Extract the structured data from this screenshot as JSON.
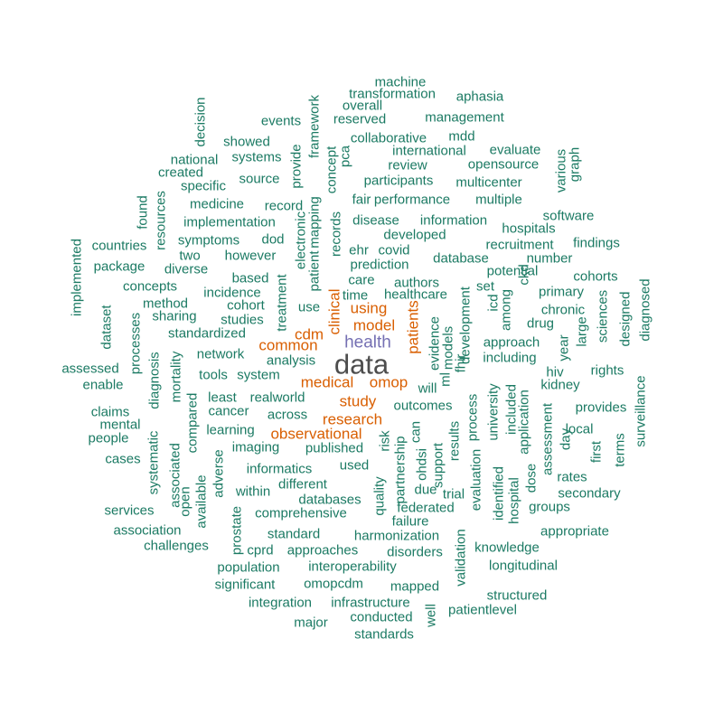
{
  "words": [
    {
      "t": "data",
      "c": "#4d4d4d"
    },
    {
      "t": "health",
      "c": "#7570b3"
    },
    {
      "t": "omop",
      "c": "#d95f02"
    },
    {
      "t": "medical",
      "c": "#d95f02"
    },
    {
      "t": "patients",
      "c": "#d95f02"
    },
    {
      "t": "clinical",
      "c": "#d95f02"
    },
    {
      "t": "model",
      "c": "#d95f02"
    },
    {
      "t": "using",
      "c": "#d95f02"
    },
    {
      "t": "cdm",
      "c": "#d95f02"
    },
    {
      "t": "common",
      "c": "#d95f02"
    },
    {
      "t": "study",
      "c": "#d95f02"
    },
    {
      "t": "research",
      "c": "#d95f02"
    },
    {
      "t": "observational",
      "c": "#d95f02"
    },
    {
      "t": "machine",
      "c": "#1b7a63"
    },
    {
      "t": "transformation",
      "c": "#1b7a63"
    },
    {
      "t": "aphasia",
      "c": "#1b7a63"
    },
    {
      "t": "overall",
      "c": "#1b7a63"
    },
    {
      "t": "events",
      "c": "#1b7a63"
    },
    {
      "t": "reserved",
      "c": "#1b7a63"
    },
    {
      "t": "management",
      "c": "#1b7a63"
    },
    {
      "t": "collaborative",
      "c": "#1b7a63"
    },
    {
      "t": "mdd",
      "c": "#1b7a63"
    },
    {
      "t": "showed",
      "c": "#1b7a63"
    },
    {
      "t": "international",
      "c": "#1b7a63"
    },
    {
      "t": "evaluate",
      "c": "#1b7a63"
    },
    {
      "t": "national",
      "c": "#1b7a63"
    },
    {
      "t": "systems",
      "c": "#1b7a63"
    },
    {
      "t": "review",
      "c": "#1b7a63"
    },
    {
      "t": "opensource",
      "c": "#1b7a63"
    },
    {
      "t": "created",
      "c": "#1b7a63"
    },
    {
      "t": "source",
      "c": "#1b7a63"
    },
    {
      "t": "participants",
      "c": "#1b7a63"
    },
    {
      "t": "multicenter",
      "c": "#1b7a63"
    },
    {
      "t": "specific",
      "c": "#1b7a63"
    },
    {
      "t": "fair",
      "c": "#1b7a63"
    },
    {
      "t": "performance",
      "c": "#1b7a63"
    },
    {
      "t": "multiple",
      "c": "#1b7a63"
    },
    {
      "t": "medicine",
      "c": "#1b7a63"
    },
    {
      "t": "record",
      "c": "#1b7a63"
    },
    {
      "t": "software",
      "c": "#1b7a63"
    },
    {
      "t": "implementation",
      "c": "#1b7a63"
    },
    {
      "t": "disease",
      "c": "#1b7a63"
    },
    {
      "t": "information",
      "c": "#1b7a63"
    },
    {
      "t": "hospitals",
      "c": "#1b7a63"
    },
    {
      "t": "symptoms",
      "c": "#1b7a63"
    },
    {
      "t": "dod",
      "c": "#1b7a63"
    },
    {
      "t": "developed",
      "c": "#1b7a63"
    },
    {
      "t": "findings",
      "c": "#1b7a63"
    },
    {
      "t": "countries",
      "c": "#1b7a63"
    },
    {
      "t": "two",
      "c": "#1b7a63"
    },
    {
      "t": "ehr",
      "c": "#1b7a63"
    },
    {
      "t": "covid",
      "c": "#1b7a63"
    },
    {
      "t": "recruitment",
      "c": "#1b7a63"
    },
    {
      "t": "package",
      "c": "#1b7a63"
    },
    {
      "t": "however",
      "c": "#1b7a63"
    },
    {
      "t": "database",
      "c": "#1b7a63"
    },
    {
      "t": "number",
      "c": "#1b7a63"
    },
    {
      "t": "diverse",
      "c": "#1b7a63"
    },
    {
      "t": "prediction",
      "c": "#1b7a63"
    },
    {
      "t": "potential",
      "c": "#1b7a63"
    },
    {
      "t": "cohorts",
      "c": "#1b7a63"
    },
    {
      "t": "based",
      "c": "#1b7a63"
    },
    {
      "t": "authors",
      "c": "#1b7a63"
    },
    {
      "t": "concepts",
      "c": "#1b7a63"
    },
    {
      "t": "incidence",
      "c": "#1b7a63"
    },
    {
      "t": "care",
      "c": "#1b7a63"
    },
    {
      "t": "set",
      "c": "#1b7a63"
    },
    {
      "t": "primary",
      "c": "#1b7a63"
    },
    {
      "t": "method",
      "c": "#1b7a63"
    },
    {
      "t": "cohort",
      "c": "#1b7a63"
    },
    {
      "t": "time",
      "c": "#1b7a63"
    },
    {
      "t": "healthcare",
      "c": "#1b7a63"
    },
    {
      "t": "chronic",
      "c": "#1b7a63"
    },
    {
      "t": "sharing",
      "c": "#1b7a63"
    },
    {
      "t": "studies",
      "c": "#1b7a63"
    },
    {
      "t": "use",
      "c": "#1b7a63"
    },
    {
      "t": "drug",
      "c": "#1b7a63"
    },
    {
      "t": "standardized",
      "c": "#1b7a63"
    },
    {
      "t": "approach",
      "c": "#1b7a63"
    },
    {
      "t": "network",
      "c": "#1b7a63"
    },
    {
      "t": "analysis",
      "c": "#1b7a63"
    },
    {
      "t": "including",
      "c": "#1b7a63"
    },
    {
      "t": "assessed",
      "c": "#1b7a63"
    },
    {
      "t": "rights",
      "c": "#1b7a63"
    },
    {
      "t": "enable",
      "c": "#1b7a63"
    },
    {
      "t": "tools",
      "c": "#1b7a63"
    },
    {
      "t": "system",
      "c": "#1b7a63"
    },
    {
      "t": "will",
      "c": "#1b7a63"
    },
    {
      "t": "hiv",
      "c": "#1b7a63"
    },
    {
      "t": "kidney",
      "c": "#1b7a63"
    },
    {
      "t": "least",
      "c": "#1b7a63"
    },
    {
      "t": "realworld",
      "c": "#1b7a63"
    },
    {
      "t": "outcomes",
      "c": "#1b7a63"
    },
    {
      "t": "provides",
      "c": "#1b7a63"
    },
    {
      "t": "claims",
      "c": "#1b7a63"
    },
    {
      "t": "cancer",
      "c": "#1b7a63"
    },
    {
      "t": "across",
      "c": "#1b7a63"
    },
    {
      "t": "mental",
      "c": "#1b7a63"
    },
    {
      "t": "learning",
      "c": "#1b7a63"
    },
    {
      "t": "local",
      "c": "#1b7a63"
    },
    {
      "t": "people",
      "c": "#1b7a63"
    },
    {
      "t": "imaging",
      "c": "#1b7a63"
    },
    {
      "t": "published",
      "c": "#1b7a63"
    },
    {
      "t": "cases",
      "c": "#1b7a63"
    },
    {
      "t": "used",
      "c": "#1b7a63"
    },
    {
      "t": "informatics",
      "c": "#1b7a63"
    },
    {
      "t": "rates",
      "c": "#1b7a63"
    },
    {
      "t": "different",
      "c": "#1b7a63"
    },
    {
      "t": "due",
      "c": "#1b7a63"
    },
    {
      "t": "within",
      "c": "#1b7a63"
    },
    {
      "t": "trial",
      "c": "#1b7a63"
    },
    {
      "t": "secondary",
      "c": "#1b7a63"
    },
    {
      "t": "databases",
      "c": "#1b7a63"
    },
    {
      "t": "federated",
      "c": "#1b7a63"
    },
    {
      "t": "groups",
      "c": "#1b7a63"
    },
    {
      "t": "services",
      "c": "#1b7a63"
    },
    {
      "t": "comprehensive",
      "c": "#1b7a63"
    },
    {
      "t": "failure",
      "c": "#1b7a63"
    },
    {
      "t": "association",
      "c": "#1b7a63"
    },
    {
      "t": "standard",
      "c": "#1b7a63"
    },
    {
      "t": "harmonization",
      "c": "#1b7a63"
    },
    {
      "t": "appropriate",
      "c": "#1b7a63"
    },
    {
      "t": "challenges",
      "c": "#1b7a63"
    },
    {
      "t": "cprd",
      "c": "#1b7a63"
    },
    {
      "t": "approaches",
      "c": "#1b7a63"
    },
    {
      "t": "disorders",
      "c": "#1b7a63"
    },
    {
      "t": "knowledge",
      "c": "#1b7a63"
    },
    {
      "t": "population",
      "c": "#1b7a63"
    },
    {
      "t": "interoperability",
      "c": "#1b7a63"
    },
    {
      "t": "longitudinal",
      "c": "#1b7a63"
    },
    {
      "t": "significant",
      "c": "#1b7a63"
    },
    {
      "t": "omopcdm",
      "c": "#1b7a63"
    },
    {
      "t": "mapped",
      "c": "#1b7a63"
    },
    {
      "t": "structured",
      "c": "#1b7a63"
    },
    {
      "t": "integration",
      "c": "#1b7a63"
    },
    {
      "t": "infrastructure",
      "c": "#1b7a63"
    },
    {
      "t": "patientlevel",
      "c": "#1b7a63"
    },
    {
      "t": "conducted",
      "c": "#1b7a63"
    },
    {
      "t": "major",
      "c": "#1b7a63"
    },
    {
      "t": "standards",
      "c": "#1b7a63"
    },
    {
      "t": "decision",
      "c": "#1b7a63"
    },
    {
      "t": "framework",
      "c": "#1b7a63"
    },
    {
      "t": "provide",
      "c": "#1b7a63"
    },
    {
      "t": "concept",
      "c": "#1b7a63"
    },
    {
      "t": "pca",
      "c": "#1b7a63"
    },
    {
      "t": "various",
      "c": "#1b7a63"
    },
    {
      "t": "graph",
      "c": "#1b7a63"
    },
    {
      "t": "found",
      "c": "#1b7a63"
    },
    {
      "t": "resources",
      "c": "#1b7a63"
    },
    {
      "t": "mapping",
      "c": "#1b7a63"
    },
    {
      "t": "records",
      "c": "#1b7a63"
    },
    {
      "t": "electronic",
      "c": "#1b7a63"
    },
    {
      "t": "patient",
      "c": "#1b7a63"
    },
    {
      "t": "implemented",
      "c": "#1b7a63"
    },
    {
      "t": "ckd",
      "c": "#1b7a63"
    },
    {
      "t": "icd",
      "c": "#1b7a63"
    },
    {
      "t": "among",
      "c": "#1b7a63"
    },
    {
      "t": "dataset",
      "c": "#1b7a63"
    },
    {
      "t": "processes",
      "c": "#1b7a63"
    },
    {
      "t": "treatment",
      "c": "#1b7a63"
    },
    {
      "t": "sciences",
      "c": "#1b7a63"
    },
    {
      "t": "designed",
      "c": "#1b7a63"
    },
    {
      "t": "diagnosed",
      "c": "#1b7a63"
    },
    {
      "t": "large",
      "c": "#1b7a63"
    },
    {
      "t": "year",
      "c": "#1b7a63"
    },
    {
      "t": "development",
      "c": "#1b7a63"
    },
    {
      "t": "evidence",
      "c": "#1b7a63"
    },
    {
      "t": "models",
      "c": "#1b7a63"
    },
    {
      "t": "fhir",
      "c": "#1b7a63"
    },
    {
      "t": "ml",
      "c": "#1b7a63"
    },
    {
      "t": "diagnosis",
      "c": "#1b7a63"
    },
    {
      "t": "mortality",
      "c": "#1b7a63"
    },
    {
      "t": "compared",
      "c": "#1b7a63"
    },
    {
      "t": "systematic",
      "c": "#1b7a63"
    },
    {
      "t": "associated",
      "c": "#1b7a63"
    },
    {
      "t": "open",
      "c": "#1b7a63"
    },
    {
      "t": "available",
      "c": "#1b7a63"
    },
    {
      "t": "adverse",
      "c": "#1b7a63"
    },
    {
      "t": "prostate",
      "c": "#1b7a63"
    },
    {
      "t": "can",
      "c": "#1b7a63"
    },
    {
      "t": "risk",
      "c": "#1b7a63"
    },
    {
      "t": "ohdsi",
      "c": "#1b7a63"
    },
    {
      "t": "partnership",
      "c": "#1b7a63"
    },
    {
      "t": "quality",
      "c": "#1b7a63"
    },
    {
      "t": "support",
      "c": "#1b7a63"
    },
    {
      "t": "results",
      "c": "#1b7a63"
    },
    {
      "t": "process",
      "c": "#1b7a63"
    },
    {
      "t": "evaluation",
      "c": "#1b7a63"
    },
    {
      "t": "university",
      "c": "#1b7a63"
    },
    {
      "t": "included",
      "c": "#1b7a63"
    },
    {
      "t": "application",
      "c": "#1b7a63"
    },
    {
      "t": "identified",
      "c": "#1b7a63"
    },
    {
      "t": "hospital",
      "c": "#1b7a63"
    },
    {
      "t": "dose",
      "c": "#1b7a63"
    },
    {
      "t": "assessment",
      "c": "#1b7a63"
    },
    {
      "t": "day",
      "c": "#1b7a63"
    },
    {
      "t": "first",
      "c": "#1b7a63"
    },
    {
      "t": "terms",
      "c": "#1b7a63"
    },
    {
      "t": "surveillance",
      "c": "#1b7a63"
    },
    {
      "t": "validation",
      "c": "#1b7a63"
    },
    {
      "t": "well",
      "c": "#1b7a63"
    }
  ]
}
